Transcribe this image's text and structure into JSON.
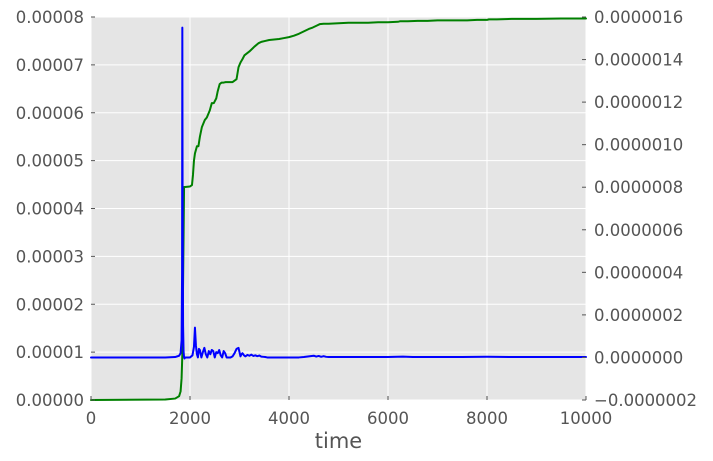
{
  "chart_data": {
    "type": "line",
    "xlabel": "time",
    "xlim": [
      0,
      10000
    ],
    "ylim_left": [
      0,
      8e-05
    ],
    "ylim_right": [
      -2e-07,
      1.6e-06
    ],
    "x_ticks": [
      0,
      2000,
      4000,
      6000,
      8000,
      10000
    ],
    "x_tick_labels": [
      "0",
      "2000",
      "4000",
      "6000",
      "8000",
      "10000"
    ],
    "y_left_ticks": [
      0,
      1e-05,
      2e-05,
      3e-05,
      4e-05,
      5e-05,
      6e-05,
      7e-05,
      8e-05
    ],
    "y_left_tick_labels": [
      "0.00000",
      "0.00001",
      "0.00002",
      "0.00003",
      "0.00004",
      "0.00005",
      "0.00006",
      "0.00007",
      "0.00008"
    ],
    "y_right_ticks": [
      -2e-07,
      0,
      2e-07,
      4e-07,
      6e-07,
      8e-07,
      1e-06,
      1.2e-06,
      1.4e-06,
      1.6e-06
    ],
    "y_right_tick_labels": [
      "−0.0000002",
      "0.0000000",
      "0.0000002",
      "0.0000004",
      "0.0000006",
      "0.0000008",
      "0.0000010",
      "0.0000012",
      "0.0000014",
      "0.0000016"
    ],
    "grid": true,
    "background": "#e5e5e5",
    "series": [
      {
        "axis": "left",
        "color": "#008000",
        "x": [
          0,
          1500,
          1700,
          1780,
          1810,
          1830,
          1845,
          1880,
          1900,
          2000,
          2040,
          2060,
          2080,
          2100,
          2140,
          2170,
          2200,
          2240,
          2300,
          2340,
          2400,
          2440,
          2480,
          2530,
          2560,
          2600,
          2640,
          2680,
          2720,
          2780,
          2860,
          2940,
          2980,
          3020,
          3060,
          3100,
          3200,
          3300,
          3380,
          3440,
          3520,
          3600,
          3700,
          3800,
          3900,
          4000,
          4100,
          4200,
          4300,
          4400,
          4480,
          4560,
          4620,
          4700,
          4800,
          5000,
          5200,
          5400,
          5600,
          5800,
          6000,
          6200,
          6240,
          6400,
          6600,
          6800,
          7000,
          7200,
          7400,
          7600,
          7800,
          8000,
          8040,
          8200,
          8500,
          9000,
          9500,
          10000
        ],
        "values": [
          0,
          1e-07,
          3e-07,
          8e-07,
          1.8e-06,
          4.5e-06,
          9.5e-06,
          4.45e-05,
          4.45e-05,
          4.46e-05,
          4.49e-05,
          4.7e-05,
          5e-05,
          5.15e-05,
          5.3e-05,
          5.3e-05,
          5.5e-05,
          5.7e-05,
          5.85e-05,
          5.9e-05,
          6.05e-05,
          6.2e-05,
          6.2e-05,
          6.3e-05,
          6.45e-05,
          6.6e-05,
          6.63e-05,
          6.63e-05,
          6.64e-05,
          6.64e-05,
          6.64e-05,
          6.7e-05,
          6.95e-05,
          7.05e-05,
          7.12e-05,
          7.2e-05,
          7.28e-05,
          7.38e-05,
          7.45e-05,
          7.48e-05,
          7.5e-05,
          7.52e-05,
          7.53e-05,
          7.54e-05,
          7.56e-05,
          7.58e-05,
          7.61e-05,
          7.65e-05,
          7.7e-05,
          7.75e-05,
          7.78e-05,
          7.82e-05,
          7.85e-05,
          7.86e-05,
          7.86e-05,
          7.87e-05,
          7.88e-05,
          7.88e-05,
          7.88e-05,
          7.89e-05,
          7.89e-05,
          7.9e-05,
          7.91e-05,
          7.91e-05,
          7.92e-05,
          7.92e-05,
          7.93e-05,
          7.93e-05,
          7.93e-05,
          7.93e-05,
          7.94e-05,
          7.94e-05,
          7.95e-05,
          7.95e-05,
          7.96e-05,
          7.96e-05,
          7.97e-05,
          7.97e-05
        ]
      },
      {
        "axis": "right",
        "color": "#0000ff",
        "x": [
          0,
          1000,
          1500,
          1700,
          1780,
          1810,
          1830,
          1840,
          1845,
          1850,
          1860,
          1870,
          1880,
          1890,
          1900,
          1920,
          1950,
          2000,
          2050,
          2080,
          2100,
          2120,
          2140,
          2160,
          2180,
          2200,
          2230,
          2260,
          2290,
          2320,
          2350,
          2380,
          2410,
          2440,
          2470,
          2500,
          2530,
          2560,
          2590,
          2620,
          2650,
          2680,
          2710,
          2740,
          2780,
          2820,
          2860,
          2900,
          2940,
          2980,
          3000,
          3020,
          3040,
          3060,
          3090,
          3120,
          3160,
          3200,
          3240,
          3280,
          3320,
          3360,
          3400,
          3440,
          3480,
          3520,
          3560,
          3600,
          3700,
          3800,
          3900,
          4000,
          4100,
          4200,
          4300,
          4400,
          4500,
          4550,
          4600,
          4650,
          4700,
          4750,
          4800,
          5000,
          5500,
          6000,
          6300,
          6500,
          7000,
          7500,
          8000,
          8500,
          9000,
          9500,
          10000
        ],
        "values": [
          0,
          0,
          0,
          2e-09,
          8e-09,
          2e-08,
          8e-08,
          4e-07,
          1.55e-06,
          8e-07,
          1.5e-07,
          3e-08,
          0,
          -5e-09,
          0,
          0,
          0,
          0,
          1e-08,
          5e-08,
          1.4e-07,
          5.5e-08,
          1.5e-08,
          0,
          4e-08,
          3.5e-08,
          0,
          2.5e-08,
          4.5e-08,
          1.5e-08,
          0,
          3e-08,
          1.5e-08,
          3.5e-08,
          3e-08,
          0,
          2.5e-08,
          2e-08,
          3.5e-08,
          1e-08,
          0,
          3e-08,
          2e-08,
          0,
          0,
          0,
          5e-09,
          2e-08,
          4e-08,
          4.5e-08,
          2.5e-08,
          5e-09,
          1.5e-08,
          2e-08,
          1e-08,
          5e-09,
          1.2e-08,
          8e-09,
          1.3e-08,
          7e-09,
          1e-08,
          6e-09,
          9e-09,
          4e-09,
          3e-09,
          2e-09,
          0,
          0,
          0,
          0,
          0,
          0,
          0,
          0,
          2e-09,
          5e-09,
          8e-09,
          4e-09,
          7e-09,
          3e-09,
          6e-09,
          3e-09,
          2e-09,
          2e-09,
          2e-09,
          2e-09,
          4e-09,
          2e-09,
          2e-09,
          2e-09,
          3e-09,
          2e-09,
          2e-09,
          2e-09,
          2e-09
        ]
      }
    ]
  }
}
